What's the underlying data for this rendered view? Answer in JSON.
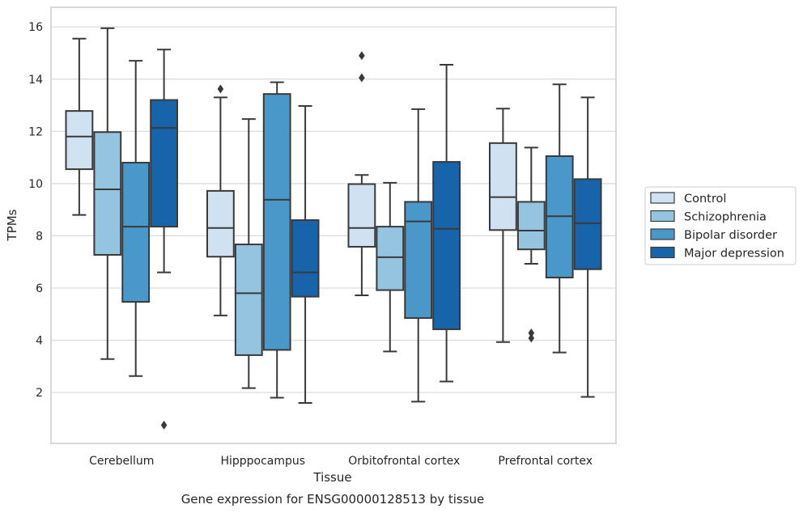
{
  "chart_data": {
    "type": "boxplot",
    "title": "Gene expression for ENSG00000128513 by tissue",
    "xlabel": "Tissue",
    "ylabel": "TPMs",
    "ylim": [
      0.05,
      16.75
    ],
    "yticks": [
      2,
      4,
      6,
      8,
      10,
      12,
      14,
      16
    ],
    "grid": "horizontal",
    "legend_placement": "right",
    "categories": [
      "Cerebellum",
      "Hipppocampus",
      "Orbitofrontal cortex",
      "Prefrontal cortex"
    ],
    "series": [
      {
        "name": "Control",
        "color": "#d0e1f2",
        "boxes": [
          {
            "whisker_low": 8.8,
            "q1": 10.55,
            "median": 11.8,
            "q3": 12.78,
            "whisker_high": 15.55,
            "outliers": []
          },
          {
            "whisker_low": 4.95,
            "q1": 7.2,
            "median": 8.3,
            "q3": 9.72,
            "whisker_high": 13.3,
            "outliers": [
              13.62
            ]
          },
          {
            "whisker_low": 5.72,
            "q1": 7.58,
            "median": 8.3,
            "q3": 9.98,
            "whisker_high": 10.33,
            "outliers": [
              14.05,
              14.9
            ]
          },
          {
            "whisker_low": 3.93,
            "q1": 8.22,
            "median": 9.48,
            "q3": 11.55,
            "whisker_high": 12.87,
            "outliers": []
          }
        ]
      },
      {
        "name": "Schizophrenia",
        "color": "#94c4df",
        "boxes": [
          {
            "whisker_low": 3.28,
            "q1": 7.27,
            "median": 9.78,
            "q3": 11.97,
            "whisker_high": 15.95,
            "outliers": []
          },
          {
            "whisker_low": 2.17,
            "q1": 3.43,
            "median": 5.8,
            "q3": 7.67,
            "whisker_high": 12.47,
            "outliers": []
          },
          {
            "whisker_low": 3.57,
            "q1": 5.92,
            "median": 7.18,
            "q3": 8.35,
            "whisker_high": 10.03,
            "outliers": []
          },
          {
            "whisker_low": 6.93,
            "q1": 7.48,
            "median": 8.2,
            "q3": 9.3,
            "whisker_high": 11.38,
            "outliers": [
              4.08,
              4.28
            ]
          }
        ]
      },
      {
        "name": "Bipolar disorder",
        "color": "#4a98c9",
        "boxes": [
          {
            "whisker_low": 2.63,
            "q1": 5.47,
            "median": 8.35,
            "q3": 10.8,
            "whisker_high": 14.7,
            "outliers": []
          },
          {
            "whisker_low": 1.8,
            "q1": 3.63,
            "median": 9.38,
            "q3": 13.43,
            "whisker_high": 13.88,
            "outliers": []
          },
          {
            "whisker_low": 1.65,
            "q1": 4.85,
            "median": 8.55,
            "q3": 9.3,
            "whisker_high": 12.85,
            "outliers": []
          },
          {
            "whisker_low": 3.53,
            "q1": 6.4,
            "median": 8.75,
            "q3": 11.05,
            "whisker_high": 13.8,
            "outliers": []
          }
        ]
      },
      {
        "name": "Major depression",
        "color": "#1764ab",
        "boxes": [
          {
            "whisker_low": 6.6,
            "q1": 8.35,
            "median": 12.13,
            "q3": 13.2,
            "whisker_high": 15.13,
            "outliers": [
              0.75
            ]
          },
          {
            "whisker_low": 1.6,
            "q1": 5.67,
            "median": 6.6,
            "q3": 8.6,
            "whisker_high": 12.97,
            "outliers": []
          },
          {
            "whisker_low": 2.42,
            "q1": 4.42,
            "median": 8.27,
            "q3": 10.83,
            "whisker_high": 14.55,
            "outliers": []
          },
          {
            "whisker_low": 1.83,
            "q1": 6.72,
            "median": 8.48,
            "q3": 10.17,
            "whisker_high": 13.3,
            "outliers": []
          }
        ]
      }
    ]
  }
}
